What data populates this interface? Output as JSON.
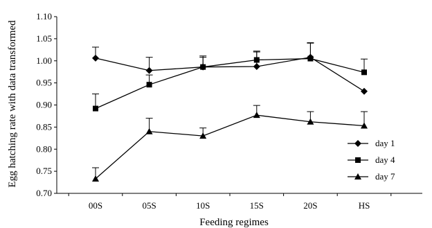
{
  "chart_data": {
    "type": "line",
    "title": "",
    "xlabel": "Feeding regimes",
    "ylabel": "Egg hatching rate with data transformed",
    "categories": [
      "00S",
      "05S",
      "10S",
      "15S",
      "20S",
      "HS"
    ],
    "ylim": [
      0.7,
      1.1
    ],
    "yticks": [
      "0.70",
      "0.75",
      "0.80",
      "0.85",
      "0.90",
      "0.95",
      "1.00",
      "1.05",
      "1.10"
    ],
    "grid": false,
    "legend_position": "bottom-right",
    "series": [
      {
        "name": "day 1",
        "marker": "diamond",
        "values": [
          1.006,
          0.978,
          0.986,
          0.987,
          1.008,
          0.931
        ],
        "errors": [
          0.025,
          0.03,
          0.025,
          0.033,
          0.033,
          0.0
        ]
      },
      {
        "name": "day 4",
        "marker": "square",
        "values": [
          0.892,
          0.946,
          0.986,
          1.002,
          1.005,
          0.974
        ],
        "errors": [
          0.033,
          0.022,
          0.022,
          0.02,
          0.035,
          0.03
        ]
      },
      {
        "name": "day 7",
        "marker": "triangle",
        "values": [
          0.733,
          0.84,
          0.83,
          0.877,
          0.862,
          0.853
        ],
        "errors": [
          0.025,
          0.03,
          0.018,
          0.022,
          0.023,
          0.032
        ]
      }
    ]
  }
}
